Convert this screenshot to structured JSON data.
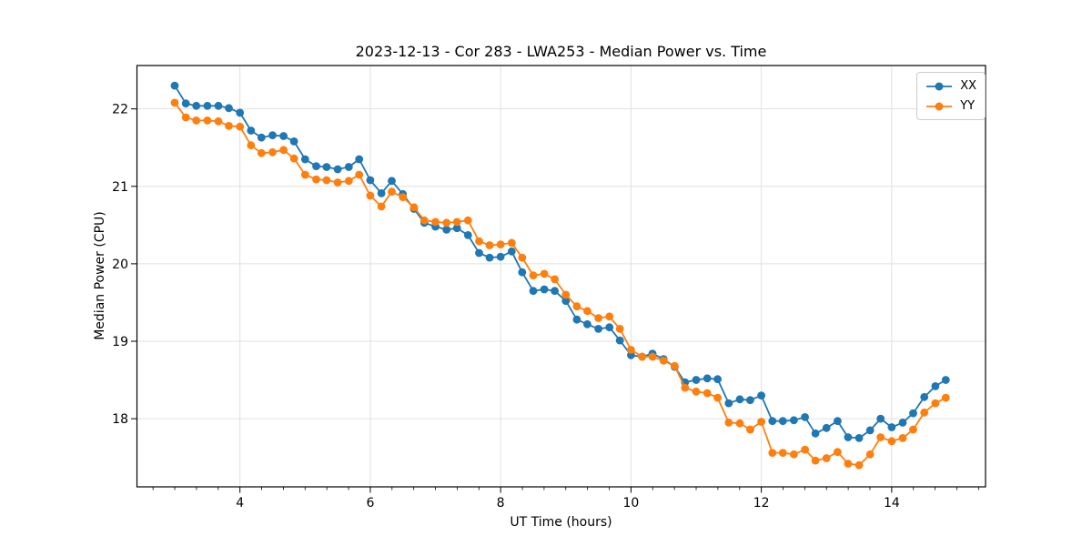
{
  "chart_data": {
    "type": "line",
    "title": "2023-12-13 - Cor 283 - LWA253 - Median Power vs. Time",
    "xlabel": "UT Time (hours)",
    "ylabel": "Median Power (CPU)",
    "xlim": [
      2.42,
      15.44
    ],
    "ylim": [
      17.12,
      22.56
    ],
    "x_ticks": [
      4,
      6,
      8,
      10,
      12,
      14
    ],
    "y_ticks": [
      18,
      19,
      20,
      21,
      22
    ],
    "x_minor_step": 0.3333,
    "grid": true,
    "grid_color": "#e0e0e0",
    "axis_color": "#000000",
    "legend_position": "upper right",
    "x": [
      3.0,
      3.17,
      3.33,
      3.5,
      3.67,
      3.83,
      4.0,
      4.17,
      4.33,
      4.5,
      4.67,
      4.83,
      5.0,
      5.17,
      5.33,
      5.5,
      5.67,
      5.83,
      6.0,
      6.17,
      6.33,
      6.5,
      6.67,
      6.83,
      7.0,
      7.17,
      7.33,
      7.5,
      7.67,
      7.83,
      8.0,
      8.17,
      8.33,
      8.5,
      8.67,
      8.83,
      9.0,
      9.17,
      9.33,
      9.5,
      9.67,
      9.83,
      10.0,
      10.17,
      10.33,
      10.5,
      10.67,
      10.83,
      11.0,
      11.17,
      11.33,
      11.5,
      11.67,
      11.83,
      12.0,
      12.17,
      12.33,
      12.5,
      12.67,
      12.83,
      13.0,
      13.17,
      13.33,
      13.5,
      13.67,
      13.83,
      14.0,
      14.17,
      14.33,
      14.5,
      14.67,
      14.83
    ],
    "series": [
      {
        "name": "XX",
        "color": "#1f77b4",
        "marker": "circle",
        "values": [
          22.3,
          22.07,
          22.04,
          22.04,
          22.04,
          22.01,
          21.95,
          21.72,
          21.63,
          21.66,
          21.65,
          21.58,
          21.35,
          21.26,
          21.25,
          21.22,
          21.25,
          21.35,
          21.08,
          20.91,
          21.07,
          20.9,
          20.71,
          20.53,
          20.48,
          20.44,
          20.46,
          20.37,
          20.14,
          20.08,
          20.09,
          20.16,
          19.89,
          19.65,
          19.67,
          19.65,
          19.52,
          19.28,
          19.22,
          19.16,
          19.18,
          19.01,
          18.82,
          18.8,
          18.84,
          18.77,
          18.67,
          18.47,
          18.5,
          18.52,
          18.51,
          18.2,
          18.25,
          18.24,
          18.3,
          17.97,
          17.97,
          17.98,
          18.02,
          17.81,
          17.88,
          17.97,
          17.76,
          17.75,
          17.85,
          18.0,
          17.89,
          17.95,
          18.07,
          18.28,
          18.42,
          18.5
        ]
      },
      {
        "name": "YY",
        "color": "#ff7f0e",
        "marker": "circle",
        "values": [
          22.08,
          21.89,
          21.85,
          21.85,
          21.84,
          21.78,
          21.77,
          21.53,
          21.43,
          21.44,
          21.47,
          21.36,
          21.15,
          21.09,
          21.08,
          21.05,
          21.07,
          21.15,
          20.88,
          20.74,
          20.93,
          20.86,
          20.73,
          20.56,
          20.54,
          20.53,
          20.54,
          20.56,
          20.29,
          20.24,
          20.25,
          20.27,
          20.08,
          19.85,
          19.87,
          19.8,
          19.6,
          19.45,
          19.39,
          19.3,
          19.32,
          19.16,
          18.89,
          18.8,
          18.8,
          18.75,
          18.68,
          18.4,
          18.35,
          18.33,
          18.27,
          17.95,
          17.94,
          17.86,
          17.96,
          17.56,
          17.56,
          17.54,
          17.6,
          17.46,
          17.49,
          17.57,
          17.42,
          17.4,
          17.54,
          17.76,
          17.71,
          17.75,
          17.86,
          18.08,
          18.2,
          18.27
        ]
      }
    ]
  }
}
